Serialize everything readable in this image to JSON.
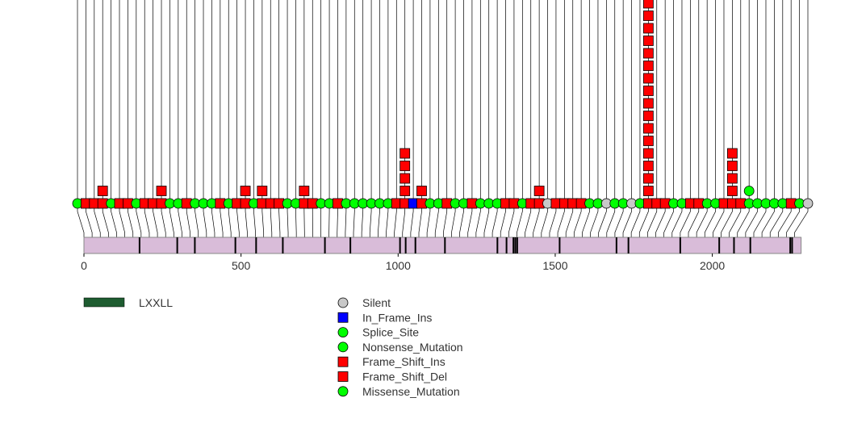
{
  "chart_data": {
    "type": "lollipop",
    "title": "",
    "xlabel": "",
    "ylabel": "",
    "xlim": [
      0,
      2280
    ],
    "protein_length": 2280,
    "x_ticks": [
      {
        "value": 0,
        "label": "0"
      },
      {
        "value": 500,
        "label": "500"
      },
      {
        "value": 1000,
        "label": "1000"
      },
      {
        "value": 1500,
        "label": "1500"
      },
      {
        "value": 2000,
        "label": "2000"
      }
    ],
    "colors": {
      "Silent": "#c8c8c8",
      "In_Frame_Ins": "#0000ff",
      "Splice_Site": "#00ff00",
      "Nonsense_Mutation": "#00ff00",
      "Frame_Shift_Ins": "#ff0000",
      "Frame_Shift_Del": "#ff0000",
      "Missense_Mutation": "#00ff00",
      "domain_fill": "#d9bcd9",
      "motif": "#1e5c30"
    },
    "motif_positions": [
      177,
      297,
      353,
      482,
      548,
      633,
      767,
      848,
      1006,
      1024,
      1055,
      1149,
      1316,
      1345,
      1367,
      1373,
      1379,
      1514,
      1695,
      1733,
      1898,
      2022,
      2069,
      2121,
      2248,
      2254
    ],
    "mutations": [
      {
        "pos": 0,
        "type": "Missense_Mutation",
        "count": 1
      },
      {
        "pos": 26,
        "type": "Frame_Shift_Del",
        "count": 1
      },
      {
        "pos": 52,
        "type": "Frame_Shift_Del",
        "count": 1
      },
      {
        "pos": 78,
        "type": "Frame_Shift_Ins",
        "count": 2
      },
      {
        "pos": 104,
        "type": "Missense_Mutation",
        "count": 1
      },
      {
        "pos": 130,
        "type": "Frame_Shift_Del",
        "count": 1
      },
      {
        "pos": 156,
        "type": "Frame_Shift_Del",
        "count": 1
      },
      {
        "pos": 182,
        "type": "Missense_Mutation",
        "count": 1
      },
      {
        "pos": 208,
        "type": "Frame_Shift_Del",
        "count": 1
      },
      {
        "pos": 234,
        "type": "Frame_Shift_Del",
        "count": 1
      },
      {
        "pos": 260,
        "type": "Frame_Shift_Ins",
        "count": 2
      },
      {
        "pos": 286,
        "type": "Missense_Mutation",
        "count": 1
      },
      {
        "pos": 312,
        "type": "Missense_Mutation",
        "count": 1
      },
      {
        "pos": 338,
        "type": "Frame_Shift_Del",
        "count": 1
      },
      {
        "pos": 364,
        "type": "Missense_Mutation",
        "count": 1
      },
      {
        "pos": 390,
        "type": "Missense_Mutation",
        "count": 1
      },
      {
        "pos": 416,
        "type": "Missense_Mutation",
        "count": 1
      },
      {
        "pos": 442,
        "type": "Frame_Shift_Del",
        "count": 1
      },
      {
        "pos": 468,
        "type": "Missense_Mutation",
        "count": 1
      },
      {
        "pos": 494,
        "type": "Frame_Shift_Del",
        "count": 1
      },
      {
        "pos": 520,
        "type": "Frame_Shift_Ins",
        "count": 2
      },
      {
        "pos": 546,
        "type": "Missense_Mutation",
        "count": 1
      },
      {
        "pos": 572,
        "type": "Frame_Shift_Ins",
        "count": 2
      },
      {
        "pos": 598,
        "type": "Frame_Shift_Del",
        "count": 1
      },
      {
        "pos": 624,
        "type": "Frame_Shift_Del",
        "count": 1
      },
      {
        "pos": 650,
        "type": "Missense_Mutation",
        "count": 1
      },
      {
        "pos": 676,
        "type": "Missense_Mutation",
        "count": 1
      },
      {
        "pos": 702,
        "type": "Frame_Shift_Ins",
        "count": 2
      },
      {
        "pos": 728,
        "type": "Frame_Shift_Del",
        "count": 1
      },
      {
        "pos": 754,
        "type": "Missense_Mutation",
        "count": 1
      },
      {
        "pos": 780,
        "type": "Missense_Mutation",
        "count": 1
      },
      {
        "pos": 806,
        "type": "Frame_Shift_Del",
        "count": 1
      },
      {
        "pos": 832,
        "type": "Missense_Mutation",
        "count": 1
      },
      {
        "pos": 858,
        "type": "Missense_Mutation",
        "count": 1
      },
      {
        "pos": 884,
        "type": "Missense_Mutation",
        "count": 1
      },
      {
        "pos": 910,
        "type": "Missense_Mutation",
        "count": 1
      },
      {
        "pos": 936,
        "type": "Missense_Mutation",
        "count": 1
      },
      {
        "pos": 962,
        "type": "Missense_Mutation",
        "count": 1
      },
      {
        "pos": 988,
        "type": "Frame_Shift_Del",
        "count": 1
      },
      {
        "pos": 1014,
        "type": "Frame_Shift_Ins",
        "count": 5
      },
      {
        "pos": 1040,
        "type": "In_Frame_Ins",
        "count": 1
      },
      {
        "pos": 1066,
        "type": "Frame_Shift_Ins",
        "count": 2
      },
      {
        "pos": 1092,
        "type": "Missense_Mutation",
        "count": 1
      },
      {
        "pos": 1118,
        "type": "Missense_Mutation",
        "count": 1
      },
      {
        "pos": 1144,
        "type": "Frame_Shift_Del",
        "count": 1
      },
      {
        "pos": 1170,
        "type": "Missense_Mutation",
        "count": 1
      },
      {
        "pos": 1196,
        "type": "Missense_Mutation",
        "count": 1
      },
      {
        "pos": 1222,
        "type": "Frame_Shift_Del",
        "count": 1
      },
      {
        "pos": 1248,
        "type": "Missense_Mutation",
        "count": 1
      },
      {
        "pos": 1274,
        "type": "Missense_Mutation",
        "count": 1
      },
      {
        "pos": 1300,
        "type": "Missense_Mutation",
        "count": 1
      },
      {
        "pos": 1326,
        "type": "Frame_Shift_Del",
        "count": 1
      },
      {
        "pos": 1352,
        "type": "Frame_Shift_Del",
        "count": 1
      },
      {
        "pos": 1378,
        "type": "Missense_Mutation",
        "count": 1
      },
      {
        "pos": 1404,
        "type": "Frame_Shift_Del",
        "count": 1
      },
      {
        "pos": 1430,
        "type": "Frame_Shift_Ins",
        "count": 2
      },
      {
        "pos": 1456,
        "type": "Silent",
        "count": 1
      },
      {
        "pos": 1482,
        "type": "Frame_Shift_Del",
        "count": 1
      },
      {
        "pos": 1508,
        "type": "Frame_Shift_Del",
        "count": 1
      },
      {
        "pos": 1534,
        "type": "Frame_Shift_Del",
        "count": 1
      },
      {
        "pos": 1560,
        "type": "Frame_Shift_Del",
        "count": 1
      },
      {
        "pos": 1586,
        "type": "Missense_Mutation",
        "count": 1
      },
      {
        "pos": 1612,
        "type": "Missense_Mutation",
        "count": 1
      },
      {
        "pos": 1638,
        "type": "Silent",
        "count": 1
      },
      {
        "pos": 1664,
        "type": "Missense_Mutation",
        "count": 1
      },
      {
        "pos": 1690,
        "type": "Missense_Mutation",
        "count": 1
      },
      {
        "pos": 1716,
        "type": "Silent",
        "count": 1
      },
      {
        "pos": 1742,
        "type": "Missense_Mutation",
        "count": 1
      },
      {
        "pos": 1768,
        "type": "Frame_Shift_Ins",
        "count": 17
      },
      {
        "pos": 1794,
        "type": "Frame_Shift_Del",
        "count": 1
      },
      {
        "pos": 1820,
        "type": "Frame_Shift_Del",
        "count": 1
      },
      {
        "pos": 1846,
        "type": "Missense_Mutation",
        "count": 1
      },
      {
        "pos": 1872,
        "type": "Missense_Mutation",
        "count": 1
      },
      {
        "pos": 1898,
        "type": "Frame_Shift_Del",
        "count": 1
      },
      {
        "pos": 1924,
        "type": "Frame_Shift_Del",
        "count": 1
      },
      {
        "pos": 1950,
        "type": "Missense_Mutation",
        "count": 1
      },
      {
        "pos": 1976,
        "type": "Missense_Mutation",
        "count": 1
      },
      {
        "pos": 2002,
        "type": "Frame_Shift_Del",
        "count": 1
      },
      {
        "pos": 2028,
        "type": "Frame_Shift_Ins",
        "count": 5
      },
      {
        "pos": 2054,
        "type": "Frame_Shift_Del",
        "count": 1
      },
      {
        "pos": 2080,
        "type": "Missense_Mutation",
        "count": 2
      },
      {
        "pos": 2106,
        "type": "Missense_Mutation",
        "count": 1
      },
      {
        "pos": 2132,
        "type": "Missense_Mutation",
        "count": 1
      },
      {
        "pos": 2158,
        "type": "Missense_Mutation",
        "count": 1
      },
      {
        "pos": 2184,
        "type": "Missense_Mutation",
        "count": 1
      },
      {
        "pos": 2210,
        "type": "Frame_Shift_Del",
        "count": 1
      },
      {
        "pos": 2236,
        "type": "Missense_Mutation",
        "count": 1
      },
      {
        "pos": 2262,
        "type": "Silent",
        "count": 1
      }
    ],
    "domain_legend": [
      {
        "label": "LXXLL",
        "color": "#1e5c30"
      }
    ],
    "mutation_legend": [
      {
        "label": "Silent",
        "shape": "circle",
        "color": "#c8c8c8"
      },
      {
        "label": "In_Frame_Ins",
        "shape": "square",
        "color": "#0000ff"
      },
      {
        "label": "Splice_Site",
        "shape": "circle",
        "color": "#00ff00"
      },
      {
        "label": "Nonsense_Mutation",
        "shape": "circle",
        "color": "#00ff00"
      },
      {
        "label": "Frame_Shift_Ins",
        "shape": "square",
        "color": "#ff0000"
      },
      {
        "label": "Frame_Shift_Del",
        "shape": "square",
        "color": "#ff0000"
      },
      {
        "label": "Missense_Mutation",
        "shape": "circle",
        "color": "#00ff00"
      }
    ]
  }
}
